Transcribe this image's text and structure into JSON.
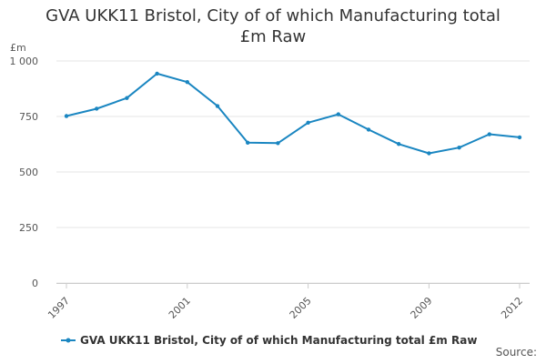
{
  "chart_data": {
    "type": "line",
    "title": "GVA UKK11 Bristol, City of of which Manufacturing total £m Raw",
    "ylabel": "£m",
    "xlabel": "",
    "ylim": [
      0,
      1000
    ],
    "y_ticks": [
      "0",
      "250",
      "500",
      "750",
      "1 000"
    ],
    "x_ticks": [
      "1997",
      "2001",
      "2005",
      "2009",
      "2012"
    ],
    "grid": "horizontal",
    "legend_position": "bottom",
    "series": [
      {
        "name": "GVA UKK11 Bristol, City of of which Manufacturing total £m Raw",
        "color": "#1a86c1",
        "x": [
          1997,
          1998,
          1999,
          2000,
          2001,
          2002,
          2003,
          2004,
          2005,
          2006,
          2007,
          2008,
          2009,
          2010,
          2011,
          2012
        ],
        "values": [
          752,
          785,
          833,
          943,
          905,
          797,
          632,
          630,
          722,
          760,
          691,
          626,
          584,
          610,
          670,
          656
        ]
      }
    ]
  },
  "footer": {
    "source_label": "Source:"
  }
}
